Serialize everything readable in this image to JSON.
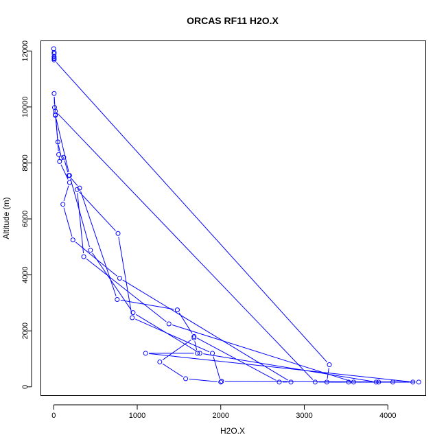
{
  "chart_data": {
    "type": "line",
    "title": "ORCAS RF11 H2O.X",
    "xlabel": "H2O.X",
    "ylabel": "Altitude (m)",
    "xlim": [
      -150,
      4450
    ],
    "ylim": [
      -300,
      12350
    ],
    "xticks": [
      0,
      1000,
      2000,
      3000,
      4000
    ],
    "yticks": [
      0,
      2000,
      4000,
      6000,
      8000,
      10000,
      12000
    ],
    "grid": false,
    "legend": "none",
    "series": [
      {
        "color": "#0000ff",
        "marker": "open-circle",
        "points": [
          {
            "x": 0,
            "y": 12080
          },
          {
            "x": 5,
            "y": 11950
          },
          {
            "x": 5,
            "y": 11900
          },
          {
            "x": 5,
            "y": 11800
          },
          {
            "x": 5,
            "y": 11750
          },
          {
            "x": 5,
            "y": 11720
          },
          {
            "x": 5,
            "y": 11680
          },
          {
            "x": 3300,
            "y": 790
          },
          {
            "x": 3270,
            "y": 170
          },
          {
            "x": 3530,
            "y": 170
          },
          {
            "x": 4300,
            "y": 170
          },
          {
            "x": 1100,
            "y": 1200
          },
          {
            "x": 1720,
            "y": 1200
          },
          {
            "x": 1680,
            "y": 1750
          },
          {
            "x": 1270,
            "y": 890
          },
          {
            "x": 1580,
            "y": 290
          },
          {
            "x": 2000,
            "y": 170
          },
          {
            "x": 1900,
            "y": 1200
          },
          {
            "x": 940,
            "y": 2470
          },
          {
            "x": 770,
            "y": 5480
          },
          {
            "x": 280,
            "y": 7050
          },
          {
            "x": 360,
            "y": 4650
          },
          {
            "x": 1380,
            "y": 2250
          },
          {
            "x": 3590,
            "y": 170
          },
          {
            "x": 4060,
            "y": 170
          },
          {
            "x": 3890,
            "y": 170
          },
          {
            "x": 3860,
            "y": 170
          },
          {
            "x": 1750,
            "y": 1200
          },
          {
            "x": 950,
            "y": 2650
          },
          {
            "x": 440,
            "y": 4880
          },
          {
            "x": 190,
            "y": 7550
          },
          {
            "x": 20,
            "y": 9700
          },
          {
            "x": 10,
            "y": 9980
          },
          {
            "x": 5,
            "y": 10480
          },
          {
            "x": 20,
            "y": 9720
          },
          {
            "x": 50,
            "y": 8750
          },
          {
            "x": 90,
            "y": 8180
          },
          {
            "x": 120,
            "y": 8200
          },
          {
            "x": 180,
            "y": 7550
          },
          {
            "x": 310,
            "y": 7100
          },
          {
            "x": 760,
            "y": 3120
          },
          {
            "x": 1480,
            "y": 2750
          },
          {
            "x": 1680,
            "y": 1800
          },
          {
            "x": 2700,
            "y": 170
          },
          {
            "x": 2840,
            "y": 170
          },
          {
            "x": 790,
            "y": 3880
          },
          {
            "x": 230,
            "y": 5250
          },
          {
            "x": 110,
            "y": 6520
          },
          {
            "x": 190,
            "y": 7300
          },
          {
            "x": 70,
            "y": 8050
          },
          {
            "x": 60,
            "y": 8300
          },
          {
            "x": 20,
            "y": 9850
          },
          {
            "x": 3130,
            "y": 170
          },
          {
            "x": 4370,
            "y": 170
          },
          {
            "x": 2010,
            "y": 200
          }
        ]
      }
    ]
  }
}
